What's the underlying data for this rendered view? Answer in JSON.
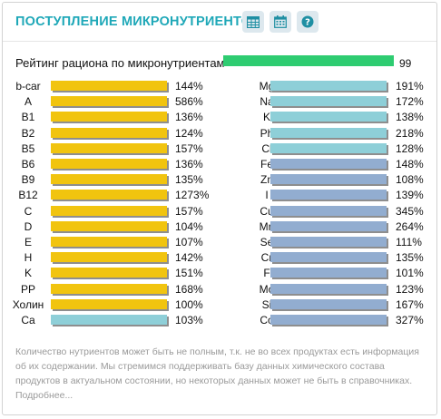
{
  "header": {
    "title": "ПОСТУПЛЕНИЕ МИКРОНУТРИЕНТОВ",
    "buttons": [
      {
        "name": "table-view-button",
        "icon": "table-icon"
      },
      {
        "name": "calendar-button",
        "icon": "calendar-icon"
      },
      {
        "name": "help-button",
        "icon": "question-icon"
      }
    ]
  },
  "rating": {
    "label": "Рейтинг рациона по микронутриентам",
    "value": "99",
    "fraction": 0.99,
    "color": "#2ecc71"
  },
  "colors": {
    "vitamin": "#f1c40f",
    "mineral_teal": "#8ecfd8",
    "mineral_blue": "#92add0",
    "accent": "#1fa8b8"
  },
  "left_column": [
    {
      "name": "b-car",
      "value": "144%",
      "fill": 0.96,
      "color": "#f1c40f"
    },
    {
      "name": "A",
      "value": "586%",
      "fill": 0.96,
      "color": "#f1c40f"
    },
    {
      "name": "B1",
      "value": "136%",
      "fill": 0.96,
      "color": "#f1c40f"
    },
    {
      "name": "B2",
      "value": "124%",
      "fill": 0.96,
      "color": "#f1c40f"
    },
    {
      "name": "B5",
      "value": "157%",
      "fill": 0.96,
      "color": "#f1c40f"
    },
    {
      "name": "B6",
      "value": "136%",
      "fill": 0.96,
      "color": "#f1c40f"
    },
    {
      "name": "B9",
      "value": "135%",
      "fill": 0.96,
      "color": "#f1c40f"
    },
    {
      "name": "B12",
      "value": "1273%",
      "fill": 0.96,
      "color": "#f1c40f"
    },
    {
      "name": "C",
      "value": "157%",
      "fill": 0.96,
      "color": "#f1c40f"
    },
    {
      "name": "D",
      "value": "104%",
      "fill": 0.96,
      "color": "#f1c40f"
    },
    {
      "name": "E",
      "value": "107%",
      "fill": 0.96,
      "color": "#f1c40f"
    },
    {
      "name": "H",
      "value": "142%",
      "fill": 0.96,
      "color": "#f1c40f"
    },
    {
      "name": "K",
      "value": "151%",
      "fill": 0.96,
      "color": "#f1c40f"
    },
    {
      "name": "PP",
      "value": "168%",
      "fill": 0.96,
      "color": "#f1c40f"
    },
    {
      "name": "Холин",
      "value": "100%",
      "fill": 0.96,
      "color": "#f1c40f"
    },
    {
      "name": "Ca",
      "value": "103%",
      "fill": 0.96,
      "color": "#8ecfd8"
    }
  ],
  "right_column": [
    {
      "name": "Mg",
      "value": "191%",
      "fill": 0.96,
      "color": "#8ecfd8"
    },
    {
      "name": "Na",
      "value": "172%",
      "fill": 0.96,
      "color": "#8ecfd8"
    },
    {
      "name": "K",
      "value": "138%",
      "fill": 0.96,
      "color": "#8ecfd8"
    },
    {
      "name": "Ph",
      "value": "218%",
      "fill": 0.96,
      "color": "#8ecfd8"
    },
    {
      "name": "Cl",
      "value": "128%",
      "fill": 0.96,
      "color": "#8ecfd8"
    },
    {
      "name": "Fe",
      "value": "148%",
      "fill": 0.96,
      "color": "#92add0"
    },
    {
      "name": "Zn",
      "value": "108%",
      "fill": 0.96,
      "color": "#92add0"
    },
    {
      "name": "I",
      "value": "139%",
      "fill": 0.96,
      "color": "#92add0"
    },
    {
      "name": "Cu",
      "value": "345%",
      "fill": 0.96,
      "color": "#92add0"
    },
    {
      "name": "Mn",
      "value": "264%",
      "fill": 0.96,
      "color": "#92add0"
    },
    {
      "name": "Se",
      "value": "111%",
      "fill": 0.96,
      "color": "#92add0"
    },
    {
      "name": "Cr",
      "value": "135%",
      "fill": 0.96,
      "color": "#92add0"
    },
    {
      "name": "F",
      "value": "101%",
      "fill": 0.96,
      "color": "#92add0"
    },
    {
      "name": "Mo",
      "value": "123%",
      "fill": 0.96,
      "color": "#92add0"
    },
    {
      "name": "Si",
      "value": "167%",
      "fill": 0.96,
      "color": "#92add0"
    },
    {
      "name": "Co",
      "value": "327%",
      "fill": 0.96,
      "color": "#92add0"
    }
  ],
  "note": "Количество нутриентов может быть не полным, т.к. не во всех продуктах есть информация об их содержании. Мы стремимся поддерживать базу данных химического состава продуктов в актуальном состоянии, но некоторых данных может не быть в справочниках. Подробнее..."
}
